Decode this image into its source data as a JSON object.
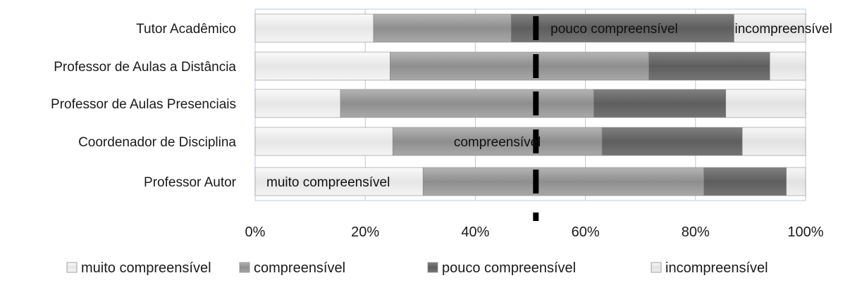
{
  "chart_data": {
    "type": "bar",
    "orientation": "horizontal",
    "stacked": "percent",
    "categories": [
      "Professor Autor",
      "Coordenador de Disciplina",
      "Professor de Aulas Presenciais",
      "Professor de Aulas a Distância",
      "Tutor Acadêmico"
    ],
    "series": [
      {
        "name": "muito compreensível",
        "values": [
          30.5,
          25,
          15.5,
          24.5,
          21.5
        ],
        "color": "#ececec"
      },
      {
        "name": "compreensível",
        "values": [
          51,
          38,
          46,
          47,
          25
        ],
        "color": "#9a9a9a"
      },
      {
        "name": "pouco compreensível",
        "values": [
          15,
          25.5,
          24,
          22,
          40.5
        ],
        "color": "#6a6a6a"
      },
      {
        "name": "incompreensível",
        "values": [
          3.5,
          11.5,
          14.5,
          6.5,
          13
        ],
        "color": "#e9e9e9"
      }
    ],
    "xlim": [
      0,
      100
    ],
    "x_ticks": [
      "0%",
      "20%",
      "40%",
      "60%",
      "80%",
      "100%"
    ],
    "reference_line": 51,
    "data_labels": [
      {
        "category": "Professor Autor",
        "series": "muito compreensível",
        "text": "muito compreensível"
      },
      {
        "category": "Coordenador de Disciplina",
        "series": "compreensível",
        "text": "compreensível"
      },
      {
        "category": "Tutor Acadêmico",
        "series": "pouco compreensível",
        "text": "pouco compreensível"
      },
      {
        "category": "Tutor Acadêmico",
        "series": "incompreensível",
        "text": "incompreensível"
      }
    ],
    "grid": true,
    "legend": "bottom"
  }
}
